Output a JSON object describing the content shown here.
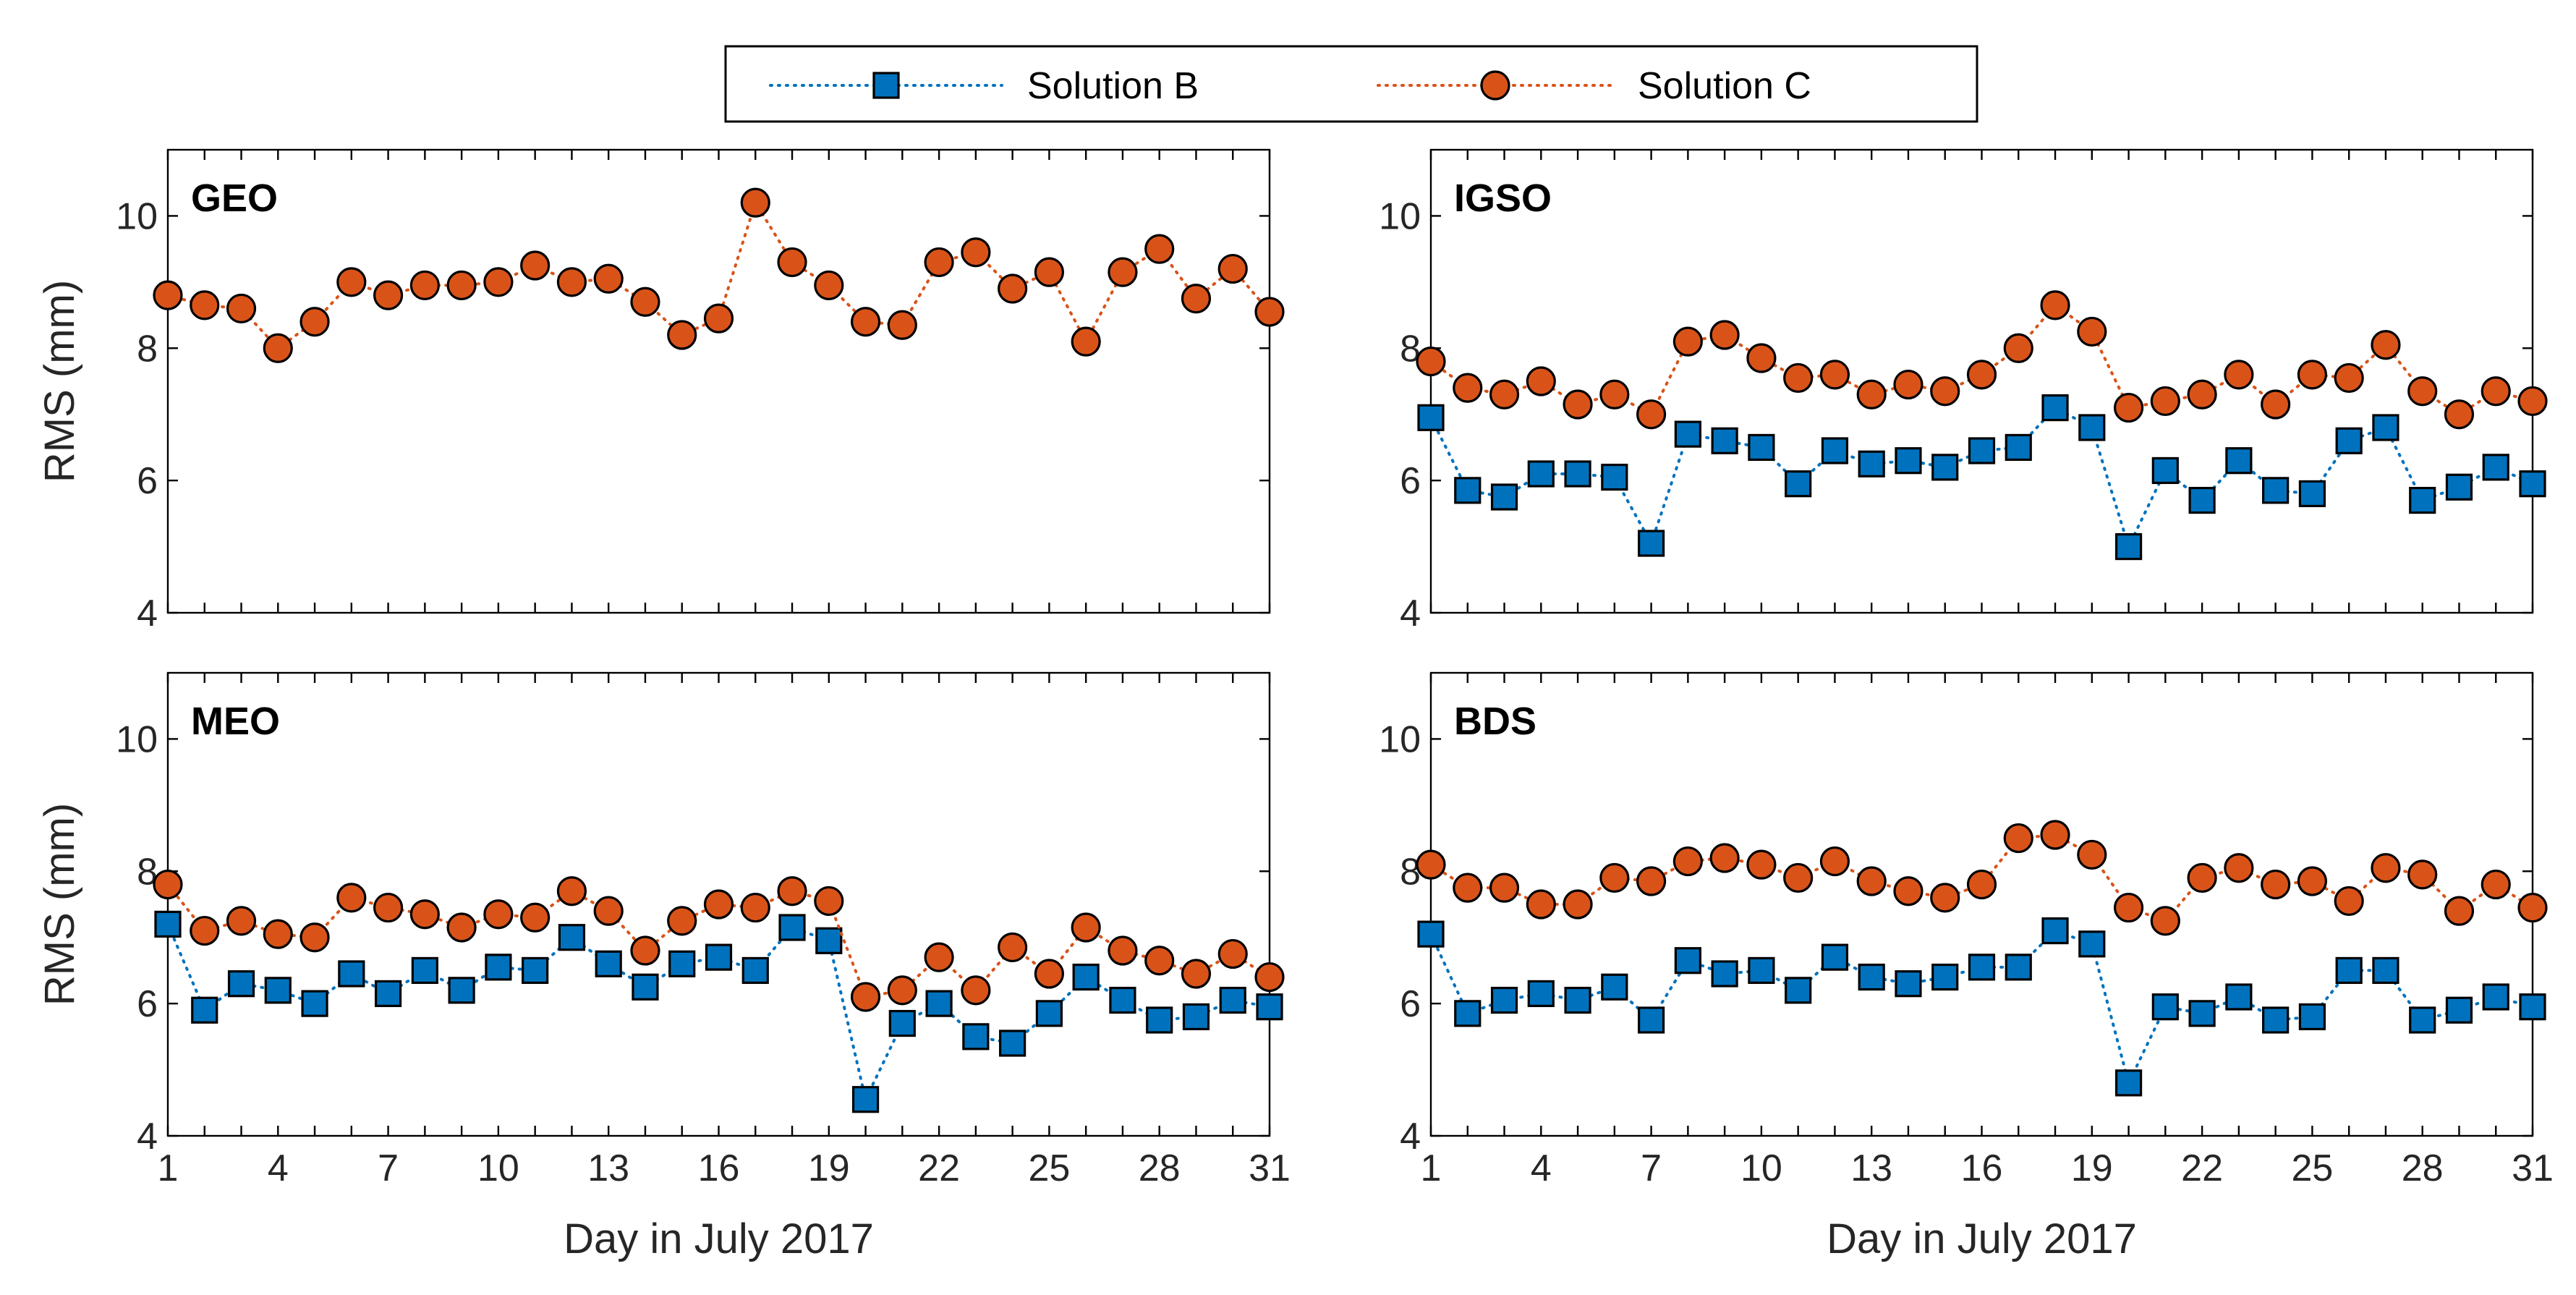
{
  "chart_data": {
    "type": "line",
    "xlabel": "Day in July 2017",
    "ylabel": "RMS (mm)",
    "xlim": [
      1,
      31
    ],
    "ylim": [
      4,
      11
    ],
    "xticks": [
      1,
      4,
      7,
      10,
      13,
      16,
      19,
      22,
      25,
      28,
      31
    ],
    "yticks": [
      4,
      6,
      8,
      10
    ],
    "series_styles": [
      {
        "name": "Solution B",
        "marker": "square",
        "color": "#0072BD"
      },
      {
        "name": "Solution C",
        "marker": "circle",
        "color": "#D95319"
      }
    ],
    "legend": {
      "placement": "top-center",
      "entries": [
        "Solution B",
        "Solution C"
      ]
    },
    "x": [
      1,
      2,
      3,
      4,
      5,
      6,
      7,
      8,
      9,
      10,
      11,
      12,
      13,
      14,
      15,
      16,
      17,
      18,
      19,
      20,
      21,
      22,
      23,
      24,
      25,
      26,
      27,
      28,
      29,
      30,
      31
    ],
    "panels": [
      {
        "title": "GEO",
        "series": [
          {
            "name": "Solution C",
            "values": [
              8.8,
              8.65,
              8.6,
              8.0,
              8.4,
              9.0,
              8.8,
              8.95,
              8.95,
              9.0,
              9.25,
              9.0,
              9.05,
              8.7,
              8.2,
              8.45,
              10.2,
              9.3,
              8.95,
              8.4,
              8.35,
              9.3,
              9.45,
              8.9,
              9.15,
              8.1,
              9.15,
              9.5,
              8.75,
              9.2,
              8.55
            ]
          }
        ]
      },
      {
        "title": "IGSO",
        "series": [
          {
            "name": "Solution B",
            "values": [
              6.95,
              5.85,
              5.75,
              6.1,
              6.1,
              6.05,
              5.05,
              6.7,
              6.6,
              6.5,
              5.95,
              6.45,
              6.25,
              6.3,
              6.2,
              6.45,
              6.5,
              7.1,
              6.8,
              5.0,
              6.15,
              5.7,
              6.3,
              5.85,
              5.8,
              6.6,
              6.8,
              5.7,
              5.9,
              6.2,
              5.95
            ]
          },
          {
            "name": "Solution C",
            "values": [
              7.8,
              7.4,
              7.3,
              7.5,
              7.15,
              7.3,
              7.0,
              8.1,
              8.2,
              7.85,
              7.55,
              7.6,
              7.3,
              7.45,
              7.35,
              7.6,
              8.0,
              8.65,
              8.25,
              7.1,
              7.2,
              7.3,
              7.6,
              7.15,
              7.6,
              7.55,
              8.05,
              7.35,
              7.0,
              7.35,
              7.2
            ]
          }
        ]
      },
      {
        "title": "MEO",
        "series": [
          {
            "name": "Solution B",
            "values": [
              7.2,
              5.9,
              6.3,
              6.2,
              6.0,
              6.45,
              6.15,
              6.5,
              6.2,
              6.55,
              6.5,
              7.0,
              6.6,
              6.25,
              6.6,
              6.7,
              6.5,
              7.15,
              6.95,
              4.55,
              5.7,
              6.0,
              5.5,
              5.4,
              5.85,
              6.4,
              6.05,
              5.75,
              5.8,
              6.05,
              5.95
            ]
          },
          {
            "name": "Solution C",
            "values": [
              7.8,
              7.1,
              7.25,
              7.05,
              7.0,
              7.6,
              7.45,
              7.35,
              7.15,
              7.35,
              7.3,
              7.7,
              7.4,
              6.8,
              7.25,
              7.5,
              7.45,
              7.7,
              7.55,
              6.1,
              6.2,
              6.7,
              6.2,
              6.85,
              6.45,
              7.15,
              6.8,
              6.65,
              6.45,
              6.75,
              6.4
            ]
          }
        ]
      },
      {
        "title": "BDS",
        "series": [
          {
            "name": "Solution B",
            "values": [
              7.05,
              5.85,
              6.05,
              6.15,
              6.05,
              6.25,
              5.75,
              6.65,
              6.45,
              6.5,
              6.2,
              6.7,
              6.4,
              6.3,
              6.4,
              6.55,
              6.55,
              7.1,
              6.9,
              4.8,
              5.95,
              5.85,
              6.1,
              5.75,
              5.8,
              6.5,
              6.5,
              5.75,
              5.9,
              6.1,
              5.95
            ]
          },
          {
            "name": "Solution C",
            "values": [
              8.1,
              7.75,
              7.75,
              7.5,
              7.5,
              7.9,
              7.85,
              8.15,
              8.2,
              8.1,
              7.9,
              8.15,
              7.85,
              7.7,
              7.6,
              7.8,
              8.5,
              8.55,
              8.25,
              7.45,
              7.25,
              7.9,
              8.05,
              7.8,
              7.85,
              7.55,
              8.05,
              7.95,
              7.4,
              7.8,
              7.45
            ]
          }
        ]
      }
    ]
  }
}
